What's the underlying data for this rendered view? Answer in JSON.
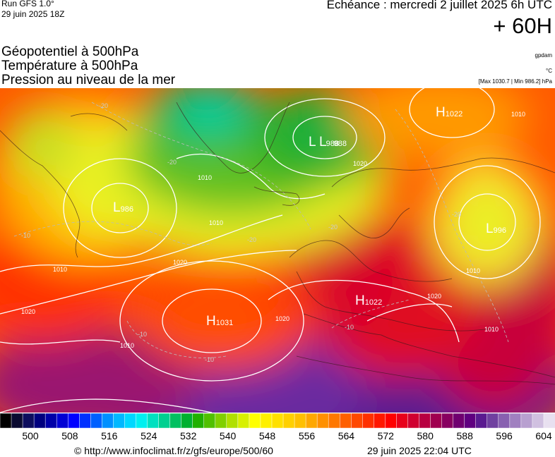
{
  "header": {
    "run": "Run GFS 1.0°",
    "run_date": "29 juin 2025 18Z",
    "echeance": "Echéance : mercredi 2 juillet 2025 6h UTC",
    "hour": "+ 60H"
  },
  "variables": [
    "Géopotentiel à 500hPa",
    "Température à 500hPa",
    "Pression au niveau de la mer"
  ],
  "units": {
    "geopotential": "gpdam",
    "temperature": "°C",
    "pressure_range": "[Max 1030.7 | Min 986.2] hPa"
  },
  "map": {
    "pressure_centers": [
      {
        "type": "H",
        "value": "1031"
      },
      {
        "type": "H",
        "value": "1022"
      },
      {
        "type": "H",
        "value": "1022"
      },
      {
        "type": "L",
        "value": "986"
      },
      {
        "type": "L",
        "value": "996"
      },
      {
        "type": "L",
        "value": "988"
      },
      {
        "type": "L",
        "value": "988"
      }
    ],
    "isobar_labels": [
      "1010",
      "1010",
      "1010",
      "1010",
      "1010",
      "1020",
      "1020",
      "1020",
      "1020",
      "1020",
      "1010",
      "1010"
    ],
    "temperature_labels": [
      "-20",
      "-20",
      "-20",
      "-20",
      "-20",
      "-10",
      "-10",
      "-10",
      "-10"
    ]
  },
  "colorbar": {
    "colors": [
      "#000000",
      "#0a0a30",
      "#0d0d5e",
      "#00007f",
      "#0000a8",
      "#0000d4",
      "#0000ff",
      "#0030ff",
      "#0060ff",
      "#0090ff",
      "#00b8ff",
      "#00d8ff",
      "#00f0f0",
      "#00e0c0",
      "#00d090",
      "#00c060",
      "#00b030",
      "#20b000",
      "#50c000",
      "#80d000",
      "#b0e000",
      "#d8f000",
      "#ffff00",
      "#fff000",
      "#ffe000",
      "#ffd000",
      "#ffc000",
      "#ffa800",
      "#ff9000",
      "#ff7800",
      "#ff6000",
      "#ff4800",
      "#ff3000",
      "#ff1800",
      "#ff0000",
      "#e8001a",
      "#d00030",
      "#b80040",
      "#a00050",
      "#880060",
      "#700070",
      "#600080",
      "#5a1a90",
      "#7040a0",
      "#8860b0",
      "#a080c0",
      "#b8a0d0",
      "#d0c0e0",
      "#e8e0f0"
    ],
    "ticks": [
      "500",
      "508",
      "516",
      "524",
      "532",
      "540",
      "548",
      "556",
      "564",
      "572",
      "580",
      "588",
      "596",
      "604"
    ]
  },
  "footer": {
    "source": "© http://www.infoclimat.fr/z/gfs/europe/500/60",
    "generated": "29 juin 2025 22:04 UTC"
  }
}
